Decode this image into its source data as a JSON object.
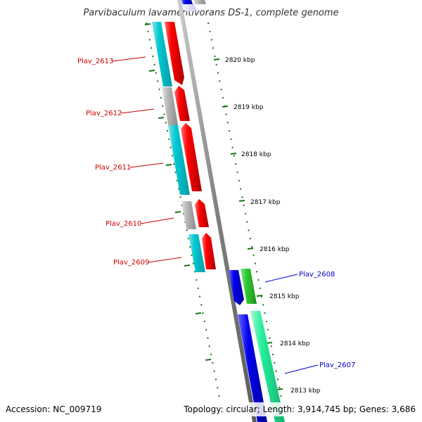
{
  "title": "Parvibaculum lavamentivorans DS-1, complete genome",
  "footer": {
    "accession": "Accession: NC_009719",
    "stats": "Topology: circular; Length: 3,914,745 bp; Genes: 3,686"
  },
  "colors": {
    "forward_label": "#cc0000",
    "reverse_label": "#0000cc",
    "cog_cyan": "#00c8d2",
    "cog_gray": "#b4b4b4",
    "cds_red": "#ff0000",
    "cds_blue": "#0000ee",
    "cog_green": "#33cc33",
    "cog_mint": "#22ee99",
    "tick_green": "#117711",
    "backbone": "#808080"
  },
  "kbp_ticks": [
    {
      "label": "2820 kbp"
    },
    {
      "label": "2819 kbp"
    },
    {
      "label": "2818 kbp"
    },
    {
      "label": "2817 kbp"
    },
    {
      "label": "2816 kbp"
    },
    {
      "label": "2815 kbp"
    },
    {
      "label": "2814 kbp"
    },
    {
      "label": "2813 kbp"
    }
  ],
  "genes": {
    "forward": [
      {
        "id": "Plav_2613",
        "cog": "cyan"
      },
      {
        "id": "Plav_2612",
        "cog": "gray"
      },
      {
        "id": "Plav_2611",
        "cog": "cyan"
      },
      {
        "id": "Plav_2610",
        "cog": "gray"
      },
      {
        "id": "Plav_2609",
        "cog": "cyan"
      }
    ],
    "reverse": [
      {
        "id": "Plav_2608",
        "cog": "green"
      },
      {
        "id": "Plav_2607",
        "cog": "mint"
      }
    ]
  }
}
